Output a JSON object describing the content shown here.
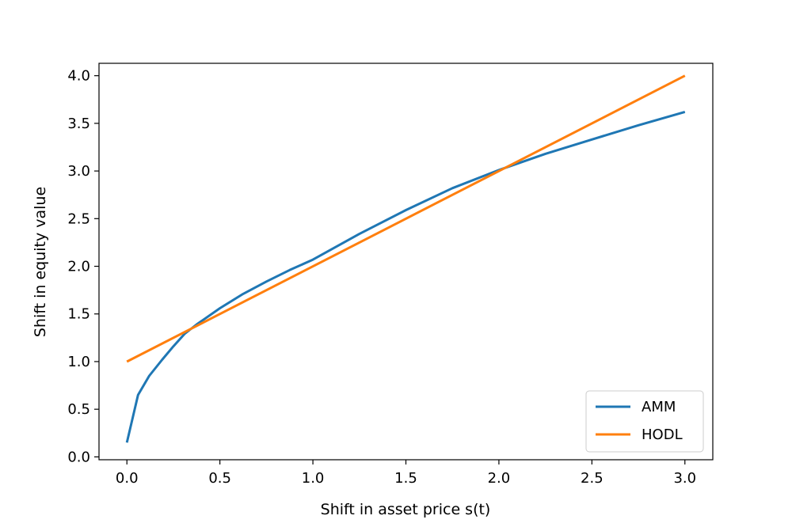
{
  "chart_data": {
    "type": "line",
    "title": "",
    "xlabel": "Shift in asset price s(t)",
    "ylabel": "Shift in equity value",
    "xlim": [
      -0.15,
      3.15
    ],
    "ylim": [
      -0.03,
      4.13
    ],
    "xticks": [
      "0.0",
      "0.5",
      "1.0",
      "1.5",
      "2.0",
      "2.5",
      "3.0"
    ],
    "yticks": [
      "0.0",
      "0.5",
      "1.0",
      "1.5",
      "2.0",
      "2.5",
      "3.0",
      "3.5",
      "4.0"
    ],
    "grid": false,
    "legend_position": "bottom-right",
    "series": [
      {
        "name": "AMM",
        "color": "#1f77b4",
        "points": [
          [
            0.0,
            0.15
          ],
          [
            0.06,
            0.65
          ],
          [
            0.12,
            0.85
          ],
          [
            0.19,
            1.02
          ],
          [
            0.25,
            1.16
          ],
          [
            0.31,
            1.29
          ],
          [
            0.375,
            1.39
          ],
          [
            0.5,
            1.56
          ],
          [
            0.625,
            1.71
          ],
          [
            0.75,
            1.84
          ],
          [
            0.875,
            1.96
          ],
          [
            1.0,
            2.07
          ],
          [
            1.25,
            2.34
          ],
          [
            1.5,
            2.59
          ],
          [
            1.75,
            2.82
          ],
          [
            2.0,
            3.01
          ],
          [
            2.25,
            3.18
          ],
          [
            2.5,
            3.33
          ],
          [
            2.75,
            3.48
          ],
          [
            3.0,
            3.62
          ]
        ]
      },
      {
        "name": "HODL",
        "color": "#ff7f0e",
        "points": [
          [
            0.0,
            1.0
          ],
          [
            3.0,
            4.0
          ]
        ]
      }
    ]
  }
}
